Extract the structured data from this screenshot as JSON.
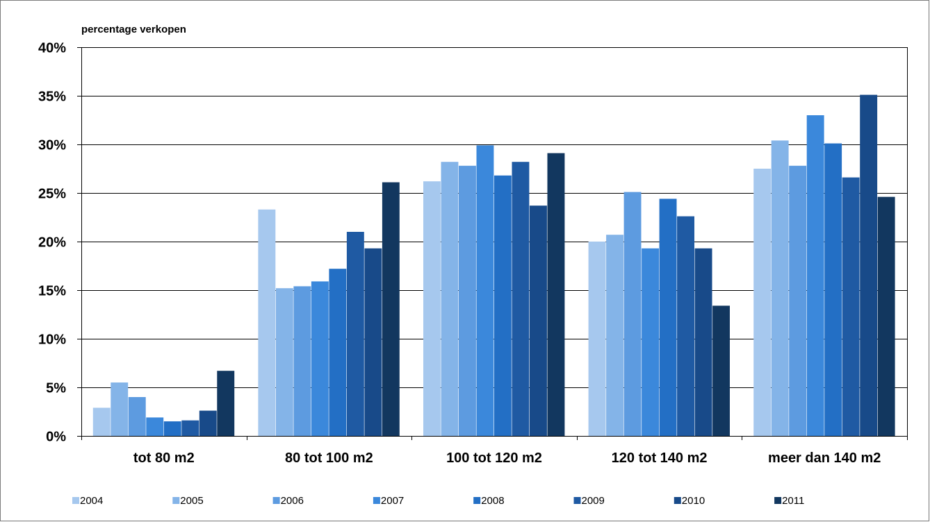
{
  "chart_data": {
    "type": "bar",
    "title": "",
    "ylabel": "percentage verkopen",
    "xlabel": "",
    "categories": [
      "tot 80 m2",
      "80 tot 100 m2",
      "100 tot 120 m2",
      "120 tot 140 m2",
      "meer dan 140 m2"
    ],
    "yticks": [
      "0%",
      "5%",
      "10%",
      "15%",
      "20%",
      "25%",
      "30%",
      "35%",
      "40%"
    ],
    "ylim": [
      0,
      40
    ],
    "y_unit": "%",
    "grid": true,
    "legend_position": "bottom",
    "series": [
      {
        "name": "2004",
        "color": "#a6c8ee",
        "values": [
          2.9,
          23.3,
          26.2,
          20.0,
          27.5
        ]
      },
      {
        "name": "2005",
        "color": "#84b4e8",
        "values": [
          5.5,
          15.2,
          28.2,
          20.7,
          30.4
        ]
      },
      {
        "name": "2006",
        "color": "#5d9be0",
        "values": [
          4.0,
          15.4,
          27.8,
          25.1,
          27.8
        ]
      },
      {
        "name": "2007",
        "color": "#3b88db",
        "values": [
          1.9,
          15.9,
          29.9,
          19.3,
          33.0
        ]
      },
      {
        "name": "2008",
        "color": "#236fc5",
        "values": [
          1.5,
          17.2,
          26.8,
          24.4,
          30.1
        ]
      },
      {
        "name": "2009",
        "color": "#1f5aa3",
        "values": [
          1.6,
          21.0,
          28.2,
          22.6,
          26.6
        ]
      },
      {
        "name": "2010",
        "color": "#184a89",
        "values": [
          2.6,
          19.3,
          23.7,
          19.3,
          35.1
        ]
      },
      {
        "name": "2011",
        "color": "#12375f",
        "values": [
          6.7,
          26.1,
          29.1,
          13.4,
          24.6
        ]
      }
    ]
  }
}
